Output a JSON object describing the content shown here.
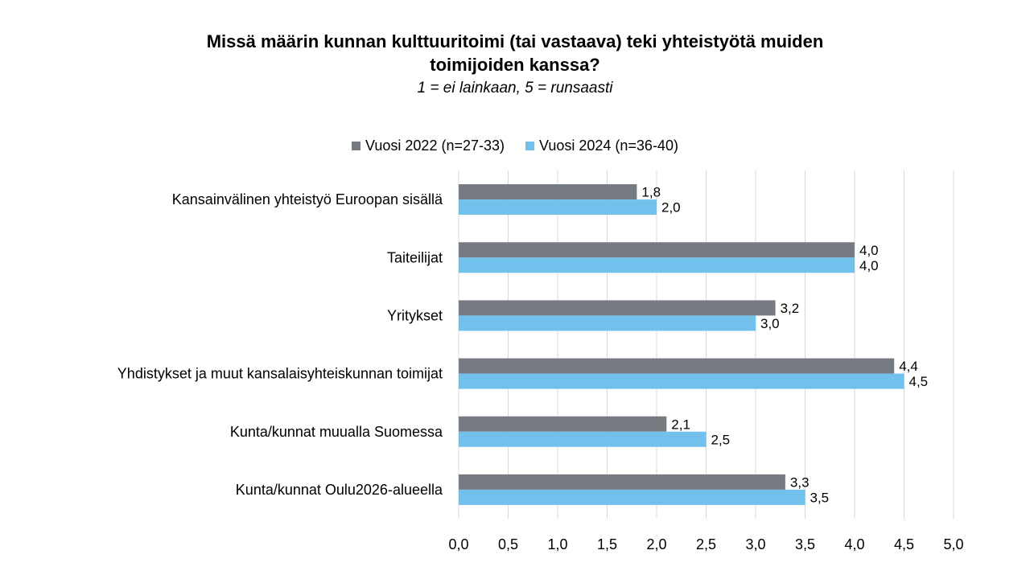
{
  "title_line1": "Missä määrin kunnan kulttuuritoimi (tai vastaava) teki yhteistyötä muiden",
  "title_line2": "toimijoiden kanssa?",
  "subtitle": "1 = ei lainkaan, 5 = runsaasti",
  "colors": {
    "series_2022": "#767B82",
    "series_2024": "#72C0EC",
    "grid": "#D9D9D9"
  },
  "chart_data": {
    "type": "bar",
    "orientation": "horizontal",
    "categories": [
      "Kansainvälinen yhteistyö Euroopan sisällä",
      "Taiteilijat",
      "Yritykset",
      "Yhdistykset ja muut kansalaisyhteiskunnan toimijat",
      "Kunta/kunnat muualla Suomessa",
      "Kunta/kunnat Oulu2026-alueella"
    ],
    "series": [
      {
        "name": "Vuosi 2022 (n=27-33)",
        "values": [
          1.8,
          4.0,
          3.2,
          4.4,
          2.1,
          3.3
        ],
        "labels": [
          "1,8",
          "4,0",
          "3,2",
          "4,4",
          "2,1",
          "3,3"
        ]
      },
      {
        "name": "Vuosi 2024 (n=36-40)",
        "values": [
          2.0,
          4.0,
          3.0,
          4.5,
          2.5,
          3.5
        ],
        "labels": [
          "2,0",
          "4,0",
          "3,0",
          "4,5",
          "2,5",
          "3,5"
        ]
      }
    ],
    "xlim": [
      0,
      5
    ],
    "x_ticks": [
      0,
      0.5,
      1,
      1.5,
      2,
      2.5,
      3,
      3.5,
      4,
      4.5,
      5
    ],
    "x_tick_labels": [
      "0,0",
      "0,5",
      "1,0",
      "1,5",
      "2,0",
      "2,5",
      "3,0",
      "3,5",
      "4,0",
      "4,5",
      "5,0"
    ],
    "grid": "vertical",
    "legend": "top-center",
    "data_labels": true
  }
}
